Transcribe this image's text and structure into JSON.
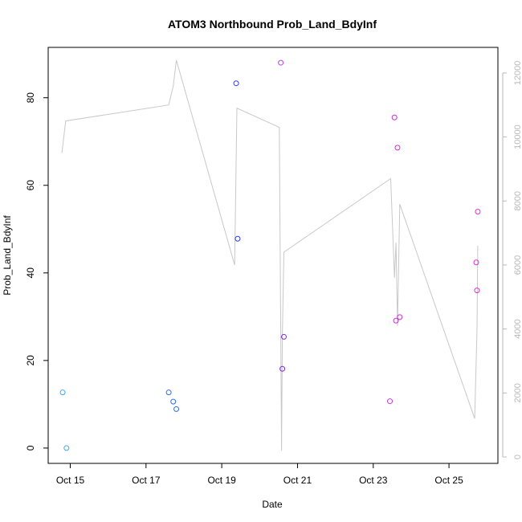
{
  "chart_data": {
    "type": "scatter",
    "title": "ATOM3 Northbound Prob_Land_BdyInf",
    "xlabel": "Date",
    "ylabel": "Prob_Land_BdyInf",
    "x_ticks": [
      "Oct 15",
      "Oct 17",
      "Oct 19",
      "Oct 21",
      "Oct 23",
      "Oct 25"
    ],
    "y_ticks": [
      0,
      20,
      40,
      60,
      80
    ],
    "y2_ticks": [
      0,
      2000,
      4000,
      6000,
      8000,
      10000,
      12000
    ],
    "ylim": [
      -3.5,
      91.5
    ],
    "y2lim": [
      -200,
      12800
    ],
    "xlim": [
      "Oct 14 10:00",
      "Oct 26 07:00"
    ],
    "colors": {
      "line": "#c8c8c8",
      "axis": "#000000",
      "right_axis": "#b8b8b8"
    },
    "points": [
      {
        "x": "Oct 14 19:12",
        "y": 12.7,
        "color": "#3fa5f0"
      },
      {
        "x": "Oct 14 21:36",
        "y": 0.0,
        "color": "#3fa5f0"
      },
      {
        "x": "Oct 17 14:24",
        "y": 12.7,
        "color": "#2d6fdf"
      },
      {
        "x": "Oct 17 17:16",
        "y": 10.6,
        "color": "#2d6fdf"
      },
      {
        "x": "Oct 17 19:12",
        "y": 8.9,
        "color": "#2d6fdf"
      },
      {
        "x": "Oct 19 09:07",
        "y": 83.3,
        "color": "#2a3af0"
      },
      {
        "x": "Oct 19 10:05",
        "y": 47.8,
        "color": "#2a3af0"
      },
      {
        "x": "Oct 20 13:26",
        "y": 88.0,
        "color": "#b440e8"
      },
      {
        "x": "Oct 20 14:24",
        "y": 18.1,
        "color": "#7a2ae0"
      },
      {
        "x": "Oct 20 15:22",
        "y": 25.4,
        "color": "#7a2ae0"
      },
      {
        "x": "Oct 23 10:34",
        "y": 10.7,
        "color": "#c438d8"
      },
      {
        "x": "Oct 23 13:26",
        "y": 75.5,
        "color": "#cc2cd8"
      },
      {
        "x": "Oct 23 14:24",
        "y": 29.1,
        "color": "#cc2cd8"
      },
      {
        "x": "Oct 23 15:22",
        "y": 68.6,
        "color": "#cc2cd8"
      },
      {
        "x": "Oct 23 16:48",
        "y": 29.9,
        "color": "#cc2cd8"
      },
      {
        "x": "Oct 25 17:16",
        "y": 42.4,
        "color": "#e030d0"
      },
      {
        "x": "Oct 25 17:45",
        "y": 36.0,
        "color": "#e030d0"
      },
      {
        "x": "Oct 25 18:14",
        "y": 54.0,
        "color": "#e030d0"
      }
    ],
    "line": [
      {
        "x": "Oct 14 18:43",
        "y2": 9500
      },
      {
        "x": "Oct 14 21:07",
        "y2": 10500
      },
      {
        "x": "Oct 17 14:24",
        "y2": 11000
      },
      {
        "x": "Oct 17 17:16",
        "y2": 11600
      },
      {
        "x": "Oct 17 19:12",
        "y2": 12400
      },
      {
        "x": "Oct 19 08:10",
        "y2": 6000
      },
      {
        "x": "Oct 19 09:36",
        "y2": 10900
      },
      {
        "x": "Oct 20 12:29",
        "y2": 10300
      },
      {
        "x": "Oct 20 13:55",
        "y2": 200
      },
      {
        "x": "Oct 20 14:24",
        "y2": 3800
      },
      {
        "x": "Oct 20 15:22",
        "y2": 6400
      },
      {
        "x": "Oct 23 11:02",
        "y2": 8700
      },
      {
        "x": "Oct 23 13:26",
        "y2": 5600
      },
      {
        "x": "Oct 23 14:24",
        "y2": 6700
      },
      {
        "x": "Oct 23 15:22",
        "y2": 4100
      },
      {
        "x": "Oct 23 16:48",
        "y2": 7900
      },
      {
        "x": "Oct 25 16:19",
        "y2": 1200
      },
      {
        "x": "Oct 25 17:45",
        "y2": 4000
      },
      {
        "x": "Oct 25 18:14",
        "y2": 6600
      }
    ]
  }
}
